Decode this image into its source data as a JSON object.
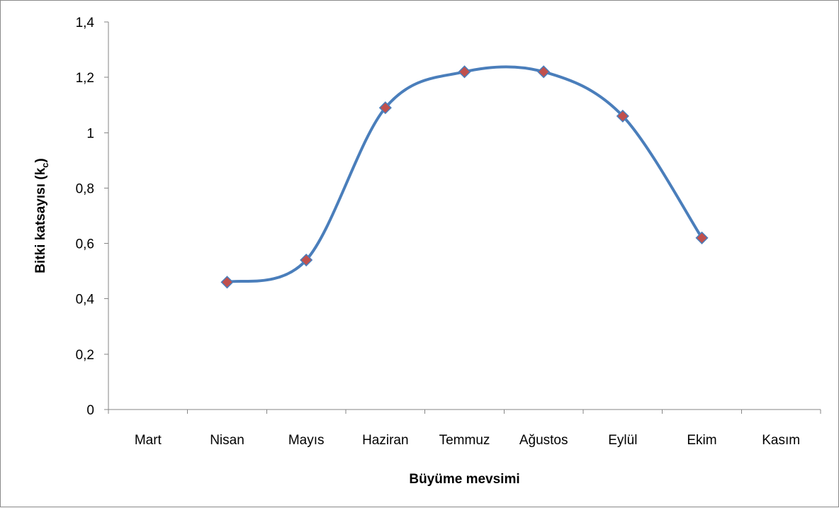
{
  "chart_data": {
    "type": "line",
    "smooth": true,
    "categories": [
      "Mart",
      "Nisan",
      "Mayıs",
      "Haziran",
      "Temmuz",
      "Ağustos",
      "Eylül",
      "Ekim",
      "Kasım"
    ],
    "series": [
      {
        "values": [
          null,
          0.46,
          0.54,
          1.09,
          1.22,
          1.22,
          1.06,
          0.62,
          null
        ],
        "line_color": "#4a7ebb",
        "marker": "diamond",
        "marker_color": "#c0504d"
      }
    ],
    "y_ticks": [
      "0",
      "0,2",
      "0,4",
      "0,6",
      "0,8",
      "1",
      "1,2",
      "1,4"
    ],
    "ylim": [
      0,
      1.4
    ],
    "xlabel": "Büyüme mevsimi",
    "ylabel_main": "Bitki katsayısı (k",
    "ylabel_sub": "c",
    "ylabel_end": ")",
    "grid": false,
    "legend": "none"
  }
}
